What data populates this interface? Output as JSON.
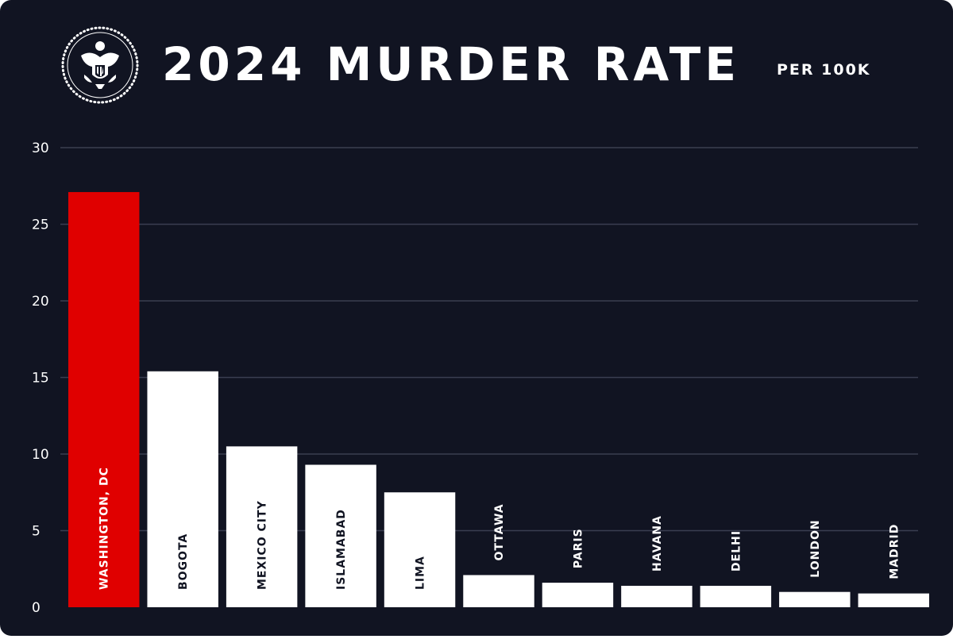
{
  "header": {
    "title": "2024 MURDER RATE",
    "subtitle": "PER 100K",
    "logo_icon": "presidential-seal-icon"
  },
  "colors": {
    "background": "#111422",
    "highlight_bar": "#e00000",
    "bar": "#ffffff",
    "gridline": "#3a3e50",
    "text": "#ffffff"
  },
  "chart_data": {
    "type": "bar",
    "title": "2024 MURDER RATE",
    "subtitle": "PER 100K",
    "xlabel": "",
    "ylabel": "",
    "categories": [
      "WASHINGTON, DC",
      "BOGOTA",
      "MEXICO CITY",
      "ISLAMABAD",
      "LIMA",
      "OTTAWA",
      "PARIS",
      "HAVANA",
      "DELHI",
      "LONDON",
      "MADRID"
    ],
    "values": [
      27.1,
      15.4,
      10.5,
      9.3,
      7.5,
      2.1,
      1.6,
      1.4,
      1.4,
      1.0,
      0.9
    ],
    "highlight": "WASHINGTON, DC",
    "ylim": [
      0,
      30
    ],
    "yticks": [
      0,
      5,
      10,
      15,
      20,
      25,
      30
    ],
    "ytick_labels": [
      "0",
      "5",
      "10",
      "15",
      "20",
      "25",
      "30"
    ],
    "grid": true,
    "legend": "none"
  }
}
